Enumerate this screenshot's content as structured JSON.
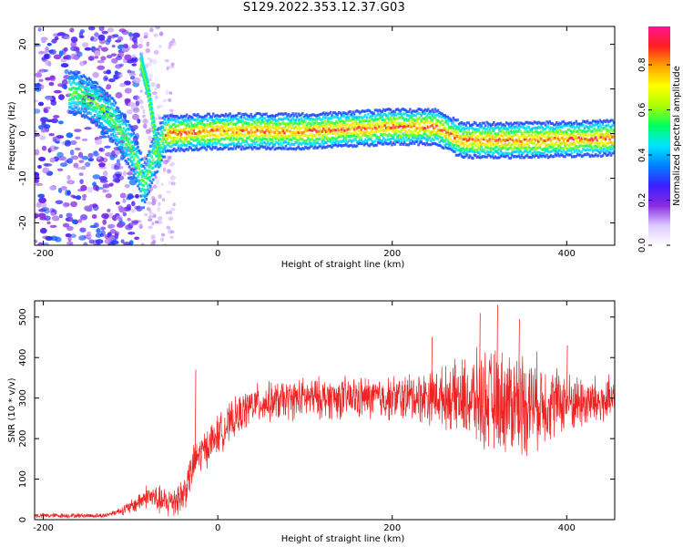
{
  "title": "S129.2022.353.12.37.G03",
  "chart_data": [
    {
      "type": "heatmap",
      "title": "",
      "xlabel": "Height of straight line (km)",
      "ylabel": "Frequency (Hz)",
      "xlim": [
        -210,
        455
      ],
      "ylim": [
        -25,
        24
      ],
      "xticks": [
        -200,
        0,
        200,
        400
      ],
      "yticks": [
        -20,
        -10,
        0,
        10,
        20
      ],
      "colorbar": {
        "label": "Normalized spectral amplitude",
        "range": [
          0.0,
          0.97
        ],
        "ticks": [
          0.0,
          0.2,
          0.4,
          0.6,
          0.8
        ],
        "colormap": [
          "#ffffff",
          "#dcc8ff",
          "#8a2be2",
          "#3b1fff",
          "#0080ff",
          "#00e5ff",
          "#00ff60",
          "#aaff00",
          "#ffff00",
          "#ffa500",
          "#ff2020",
          "#ff1493"
        ]
      },
      "ridge": {
        "description_points": [
          [
            -160,
            9
          ],
          [
            -140,
            7
          ],
          [
            -120,
            3
          ],
          [
            -100,
            -3
          ],
          [
            -90,
            -8
          ],
          [
            -85,
            -12
          ],
          [
            -75,
            -6
          ],
          [
            -60,
            0
          ],
          [
            0,
            0.5
          ],
          [
            100,
            0.5
          ],
          [
            200,
            1.5
          ],
          [
            250,
            1.5
          ],
          [
            280,
            -1.5
          ],
          [
            350,
            -1.5
          ],
          [
            450,
            -1
          ]
        ],
        "branch_points": [
          [
            -88,
            16
          ],
          [
            -80,
            10
          ],
          [
            -72,
            0
          ],
          [
            -66,
            -6
          ]
        ]
      }
    },
    {
      "type": "line",
      "title": "",
      "xlabel": "Height of straight line (km)",
      "ylabel": "SNR (10 * v/v)",
      "xlim": [
        -210,
        455
      ],
      "ylim": [
        0,
        540
      ],
      "xticks": [
        -200,
        0,
        200,
        400
      ],
      "yticks": [
        0,
        100,
        200,
        300,
        400,
        500
      ],
      "series_color": "#ee2222",
      "envelope": [
        [
          -210,
          10
        ],
        [
          -130,
          10
        ],
        [
          -100,
          30
        ],
        [
          -80,
          60
        ],
        [
          -60,
          40
        ],
        [
          -40,
          60
        ],
        [
          -25,
          150
        ],
        [
          0,
          210
        ],
        [
          20,
          250
        ],
        [
          40,
          285
        ],
        [
          100,
          300
        ],
        [
          200,
          300
        ],
        [
          250,
          305
        ],
        [
          300,
          295
        ],
        [
          350,
          290
        ],
        [
          400,
          290
        ],
        [
          455,
          290
        ]
      ],
      "spread": [
        [
          -210,
          5
        ],
        [
          -120,
          5
        ],
        [
          -80,
          25
        ],
        [
          -40,
          40
        ],
        [
          0,
          40
        ],
        [
          50,
          40
        ],
        [
          200,
          45
        ],
        [
          260,
          60
        ],
        [
          300,
          100
        ],
        [
          350,
          110
        ],
        [
          400,
          60
        ],
        [
          455,
          50
        ]
      ],
      "peaks": [
        [
          -26,
          370
        ],
        [
          300,
          510
        ],
        [
          320,
          530
        ],
        [
          345,
          495
        ],
        [
          245,
          450
        ],
        [
          400,
          430
        ]
      ]
    }
  ]
}
